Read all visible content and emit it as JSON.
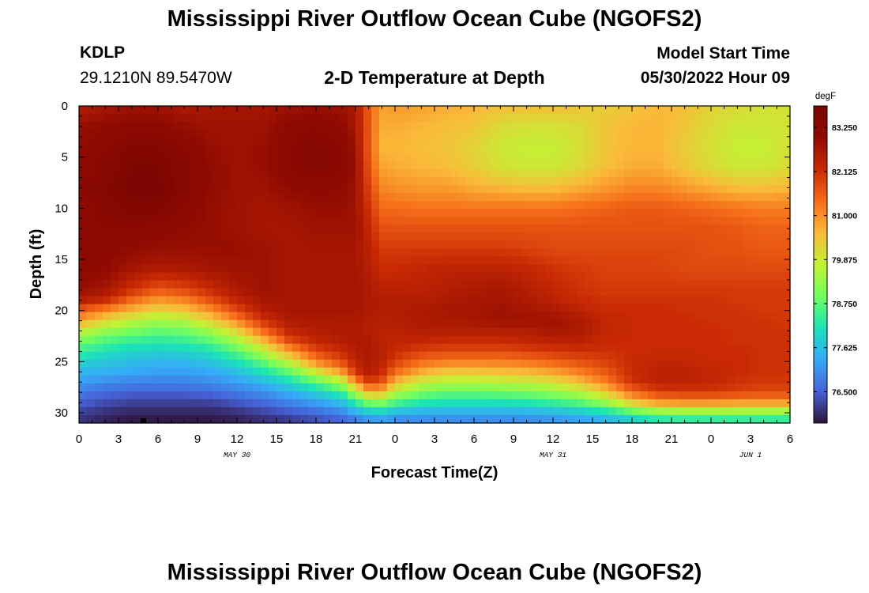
{
  "page": {
    "title": "Mississippi River Outflow Ocean Cube (NGOFS2)",
    "title_repeat": "Mississippi River Outflow Ocean Cube (NGOFS2)",
    "station_id": "KDLP",
    "station_coords": "29.1210N  89.5470W",
    "subtitle": "2-D Temperature at Depth",
    "model_start_label": "Model Start Time",
    "model_start_value": "05/30/2022 Hour 09"
  },
  "chart_data": {
    "type": "heatmap",
    "title": "2-D Temperature at Depth",
    "xlabel": "Forecast Time(Z)",
    "ylabel": "Depth (ft)",
    "x_range_hours": [
      0,
      54
    ],
    "x_ticks": [
      0,
      3,
      6,
      9,
      12,
      15,
      18,
      21,
      24,
      27,
      30,
      33,
      36,
      39,
      42,
      45,
      48,
      51,
      54
    ],
    "x_tick_labels": [
      "0",
      "3",
      "6",
      "9",
      "12",
      "15",
      "18",
      "21",
      "0",
      "3",
      "6",
      "9",
      "12",
      "15",
      "18",
      "21",
      "0",
      "3",
      "6"
    ],
    "x_day_labels": [
      {
        "hour": 12,
        "label": "MAY 30"
      },
      {
        "hour": 36,
        "label": "MAY 31"
      },
      {
        "hour": 51,
        "label": "JUN 1"
      }
    ],
    "y_range_ft": [
      0,
      31
    ],
    "y_ticks": [
      0,
      5,
      10,
      15,
      20,
      25,
      30
    ],
    "y_tick_labels": [
      "0",
      "5",
      "10",
      "15",
      "20",
      "25",
      "30"
    ],
    "colorbar": {
      "unit": "degF",
      "min": 75.7,
      "max": 83.8,
      "ticks": [
        83.25,
        82.125,
        81.0,
        79.875,
        78.75,
        77.625,
        76.5
      ],
      "tick_labels": [
        "83.250",
        "82.125",
        "81.000",
        "79.875",
        "78.750",
        "77.625",
        "76.500"
      ]
    },
    "grid_hours": [
      0,
      2,
      4,
      6,
      8,
      10,
      12,
      14,
      16,
      18,
      20,
      21,
      22,
      23,
      24,
      26,
      28,
      30,
      32,
      34,
      36,
      38,
      40,
      42,
      44,
      46,
      48,
      50,
      52,
      54
    ],
    "grid_depths_ft": [
      0,
      2,
      4,
      6,
      8,
      10,
      12,
      14,
      16,
      18,
      19,
      20,
      21,
      22,
      23,
      24,
      25,
      26,
      27,
      28,
      29,
      30,
      31
    ],
    "temperature_degF": [
      [
        82.5,
        82.7,
        82.8,
        82.8,
        82.6,
        82.7,
        82.7,
        82.7,
        82.8,
        82.9,
        82.8,
        82.6,
        81.6,
        80.8,
        80.9,
        80.8,
        80.7,
        80.6,
        80.5,
        80.5,
        80.5,
        80.4,
        80.3,
        80.4,
        80.6,
        80.5,
        80.2,
        80.1,
        80.0,
        80.0
      ],
      [
        82.9,
        83.0,
        83.1,
        83.1,
        82.9,
        82.8,
        82.8,
        82.8,
        83.1,
        83.2,
        83.0,
        82.7,
        81.6,
        80.7,
        80.7,
        80.6,
        80.5,
        80.4,
        80.1,
        80.0,
        80.0,
        80.1,
        80.4,
        80.6,
        80.6,
        80.4,
        80.1,
        79.9,
        79.9,
        80.0
      ],
      [
        83.0,
        83.2,
        83.4,
        83.4,
        83.2,
        82.9,
        82.8,
        82.9,
        83.2,
        83.4,
        83.2,
        82.8,
        81.6,
        80.6,
        80.6,
        80.5,
        80.4,
        80.2,
        79.9,
        79.8,
        79.8,
        80.0,
        80.4,
        80.6,
        80.6,
        80.3,
        80.0,
        79.8,
        79.8,
        80.0
      ],
      [
        83.1,
        83.3,
        83.6,
        83.6,
        83.3,
        83.0,
        82.8,
        82.9,
        83.2,
        83.4,
        83.2,
        82.9,
        81.7,
        80.8,
        80.7,
        80.6,
        80.5,
        80.3,
        80.0,
        79.9,
        79.9,
        80.1,
        80.5,
        80.7,
        80.7,
        80.4,
        80.1,
        79.9,
        79.9,
        80.1
      ],
      [
        83.2,
        83.4,
        83.7,
        83.7,
        83.3,
        83.0,
        82.8,
        82.8,
        83.0,
        83.1,
        83.0,
        82.8,
        81.9,
        81.1,
        81.0,
        80.9,
        80.9,
        80.7,
        80.6,
        80.5,
        80.5,
        80.7,
        80.9,
        81.1,
        81.1,
        80.9,
        80.7,
        80.5,
        80.5,
        80.6
      ],
      [
        83.1,
        83.3,
        83.5,
        83.5,
        83.2,
        82.9,
        82.8,
        82.7,
        82.8,
        82.9,
        82.9,
        82.8,
        82.1,
        81.4,
        81.4,
        81.3,
        81.3,
        81.3,
        81.3,
        81.3,
        81.3,
        81.4,
        81.5,
        81.6,
        81.6,
        81.5,
        81.4,
        81.3,
        81.2,
        81.2
      ],
      [
        83.2,
        83.2,
        83.2,
        83.1,
        83.0,
        82.9,
        82.8,
        82.7,
        82.7,
        82.8,
        82.8,
        82.8,
        82.3,
        81.7,
        81.7,
        81.7,
        81.7,
        81.7,
        81.7,
        81.7,
        81.7,
        81.7,
        81.7,
        81.7,
        81.7,
        81.7,
        81.7,
        81.6,
        81.5,
        81.5
      ],
      [
        83.2,
        83.1,
        83.0,
        82.9,
        82.9,
        82.9,
        82.9,
        82.8,
        82.7,
        82.7,
        82.7,
        82.7,
        82.4,
        82.0,
        82.0,
        82.0,
        82.0,
        82.0,
        82.0,
        81.9,
        81.8,
        81.8,
        81.8,
        81.8,
        81.8,
        81.8,
        81.7,
        81.7,
        81.6,
        81.6
      ],
      [
        83.1,
        83.0,
        82.7,
        82.5,
        82.6,
        82.7,
        82.8,
        82.8,
        82.7,
        82.7,
        82.7,
        82.7,
        82.5,
        82.2,
        82.2,
        82.3,
        82.4,
        82.4,
        82.4,
        82.3,
        82.1,
        82.0,
        81.9,
        81.9,
        81.9,
        81.8,
        81.8,
        81.8,
        81.8,
        81.8
      ],
      [
        82.9,
        82.7,
        82.1,
        81.6,
        81.8,
        82.2,
        82.6,
        82.8,
        82.7,
        82.7,
        82.7,
        82.7,
        82.6,
        82.4,
        82.4,
        82.4,
        82.5,
        82.6,
        82.7,
        82.5,
        82.3,
        82.1,
        82.0,
        82.0,
        82.0,
        82.0,
        82.0,
        82.0,
        82.0,
        82.0
      ],
      [
        82.5,
        82.2,
        81.4,
        80.9,
        81.1,
        81.7,
        82.3,
        82.7,
        82.7,
        82.7,
        82.7,
        82.7,
        82.6,
        82.5,
        82.5,
        82.5,
        82.6,
        82.7,
        82.7,
        82.6,
        82.4,
        82.2,
        82.1,
        82.1,
        82.1,
        82.1,
        82.1,
        82.0,
        82.0,
        82.0
      ],
      [
        81.6,
        81.1,
        80.6,
        80.2,
        80.4,
        81.0,
        81.8,
        82.5,
        82.7,
        82.7,
        82.7,
        82.7,
        82.6,
        82.5,
        82.5,
        82.6,
        82.7,
        82.7,
        82.8,
        82.7,
        82.6,
        82.4,
        82.2,
        82.2,
        82.2,
        82.1,
        82.1,
        82.1,
        82.0,
        82.0
      ],
      [
        80.8,
        80.2,
        79.7,
        79.4,
        79.6,
        80.2,
        81.1,
        82.1,
        82.6,
        82.6,
        82.6,
        82.6,
        82.5,
        82.5,
        82.5,
        82.6,
        82.6,
        82.7,
        82.8,
        82.8,
        82.8,
        82.6,
        82.3,
        82.2,
        82.2,
        82.2,
        82.1,
        82.1,
        82.1,
        82.0
      ],
      [
        79.8,
        79.3,
        79.0,
        78.8,
        78.9,
        79.4,
        80.2,
        81.4,
        82.3,
        82.5,
        82.6,
        82.6,
        82.5,
        82.4,
        82.4,
        82.5,
        82.5,
        82.5,
        82.5,
        82.5,
        82.7,
        82.6,
        82.3,
        82.2,
        82.2,
        82.2,
        82.2,
        82.1,
        82.1,
        82.1
      ],
      [
        79.0,
        78.6,
        78.4,
        78.3,
        78.4,
        78.7,
        79.4,
        80.5,
        81.8,
        82.3,
        82.5,
        82.6,
        82.6,
        82.4,
        82.3,
        82.3,
        82.2,
        82.2,
        82.2,
        82.3,
        82.4,
        82.4,
        82.2,
        82.2,
        82.2,
        82.2,
        82.2,
        82.1,
        82.1,
        82.1
      ],
      [
        78.4,
        78.1,
        77.9,
        77.8,
        77.9,
        78.1,
        78.7,
        79.6,
        80.8,
        81.8,
        82.2,
        82.5,
        82.6,
        82.5,
        82.2,
        81.9,
        81.8,
        81.8,
        81.8,
        81.9,
        82.0,
        82.1,
        82.1,
        82.2,
        82.2,
        82.2,
        82.2,
        82.2,
        82.1,
        82.1
      ],
      [
        77.9,
        77.7,
        77.6,
        77.5,
        77.5,
        77.7,
        78.1,
        78.8,
        79.8,
        81.1,
        81.8,
        82.4,
        82.6,
        82.4,
        81.9,
        81.4,
        81.2,
        81.2,
        81.2,
        81.3,
        81.5,
        81.7,
        81.9,
        82.2,
        82.3,
        82.3,
        82.2,
        82.2,
        82.1,
        82.1
      ],
      [
        77.5,
        77.4,
        77.3,
        77.2,
        77.2,
        77.3,
        77.6,
        78.1,
        78.8,
        79.9,
        80.9,
        82.0,
        82.5,
        82.2,
        81.4,
        80.7,
        80.4,
        80.4,
        80.5,
        80.6,
        80.8,
        81.2,
        81.6,
        82.2,
        82.4,
        82.4,
        82.3,
        82.2,
        82.1,
        82.1
      ],
      [
        77.2,
        77.0,
        76.9,
        76.9,
        76.9,
        77.0,
        77.2,
        77.5,
        78.0,
        78.7,
        79.6,
        81.0,
        82.0,
        81.7,
        80.6,
        79.8,
        79.6,
        79.6,
        79.7,
        79.8,
        80.0,
        80.5,
        81.2,
        82.1,
        82.4,
        82.4,
        82.3,
        82.1,
        82.0,
        82.0
      ],
      [
        76.8,
        76.6,
        76.5,
        76.5,
        76.5,
        76.6,
        76.8,
        77.0,
        77.4,
        77.8,
        78.4,
        79.5,
        80.6,
        80.6,
        79.6,
        79.0,
        78.8,
        78.8,
        78.9,
        79.0,
        79.2,
        79.6,
        80.3,
        81.4,
        81.9,
        82.0,
        82.0,
        81.9,
        81.8,
        81.8
      ],
      [
        76.5,
        76.3,
        76.2,
        76.2,
        76.2,
        76.2,
        76.4,
        76.6,
        76.9,
        77.2,
        77.6,
        78.3,
        79.0,
        79.1,
        78.6,
        78.2,
        78.1,
        78.1,
        78.1,
        78.2,
        78.4,
        78.7,
        79.3,
        80.3,
        80.9,
        81.0,
        81.0,
        80.9,
        80.9,
        80.9
      ],
      [
        76.2,
        76.0,
        75.9,
        75.9,
        75.9,
        75.9,
        76.0,
        76.2,
        76.4,
        76.6,
        76.9,
        77.3,
        77.7,
        77.8,
        77.5,
        77.4,
        77.4,
        77.4,
        77.4,
        77.4,
        77.5,
        77.7,
        78.0,
        78.6,
        79.1,
        79.2,
        79.2,
        79.2,
        79.2,
        79.2
      ],
      [
        76.0,
        75.8,
        75.7,
        75.7,
        75.7,
        75.7,
        75.8,
        75.9,
        76.0,
        76.2,
        76.4,
        76.6,
        76.8,
        76.9,
        76.8,
        76.8,
        76.8,
        76.8,
        76.8,
        76.8,
        76.9,
        77.0,
        77.2,
        77.5,
        77.8,
        77.9,
        77.9,
        77.9,
        77.9,
        77.9
      ]
    ]
  }
}
